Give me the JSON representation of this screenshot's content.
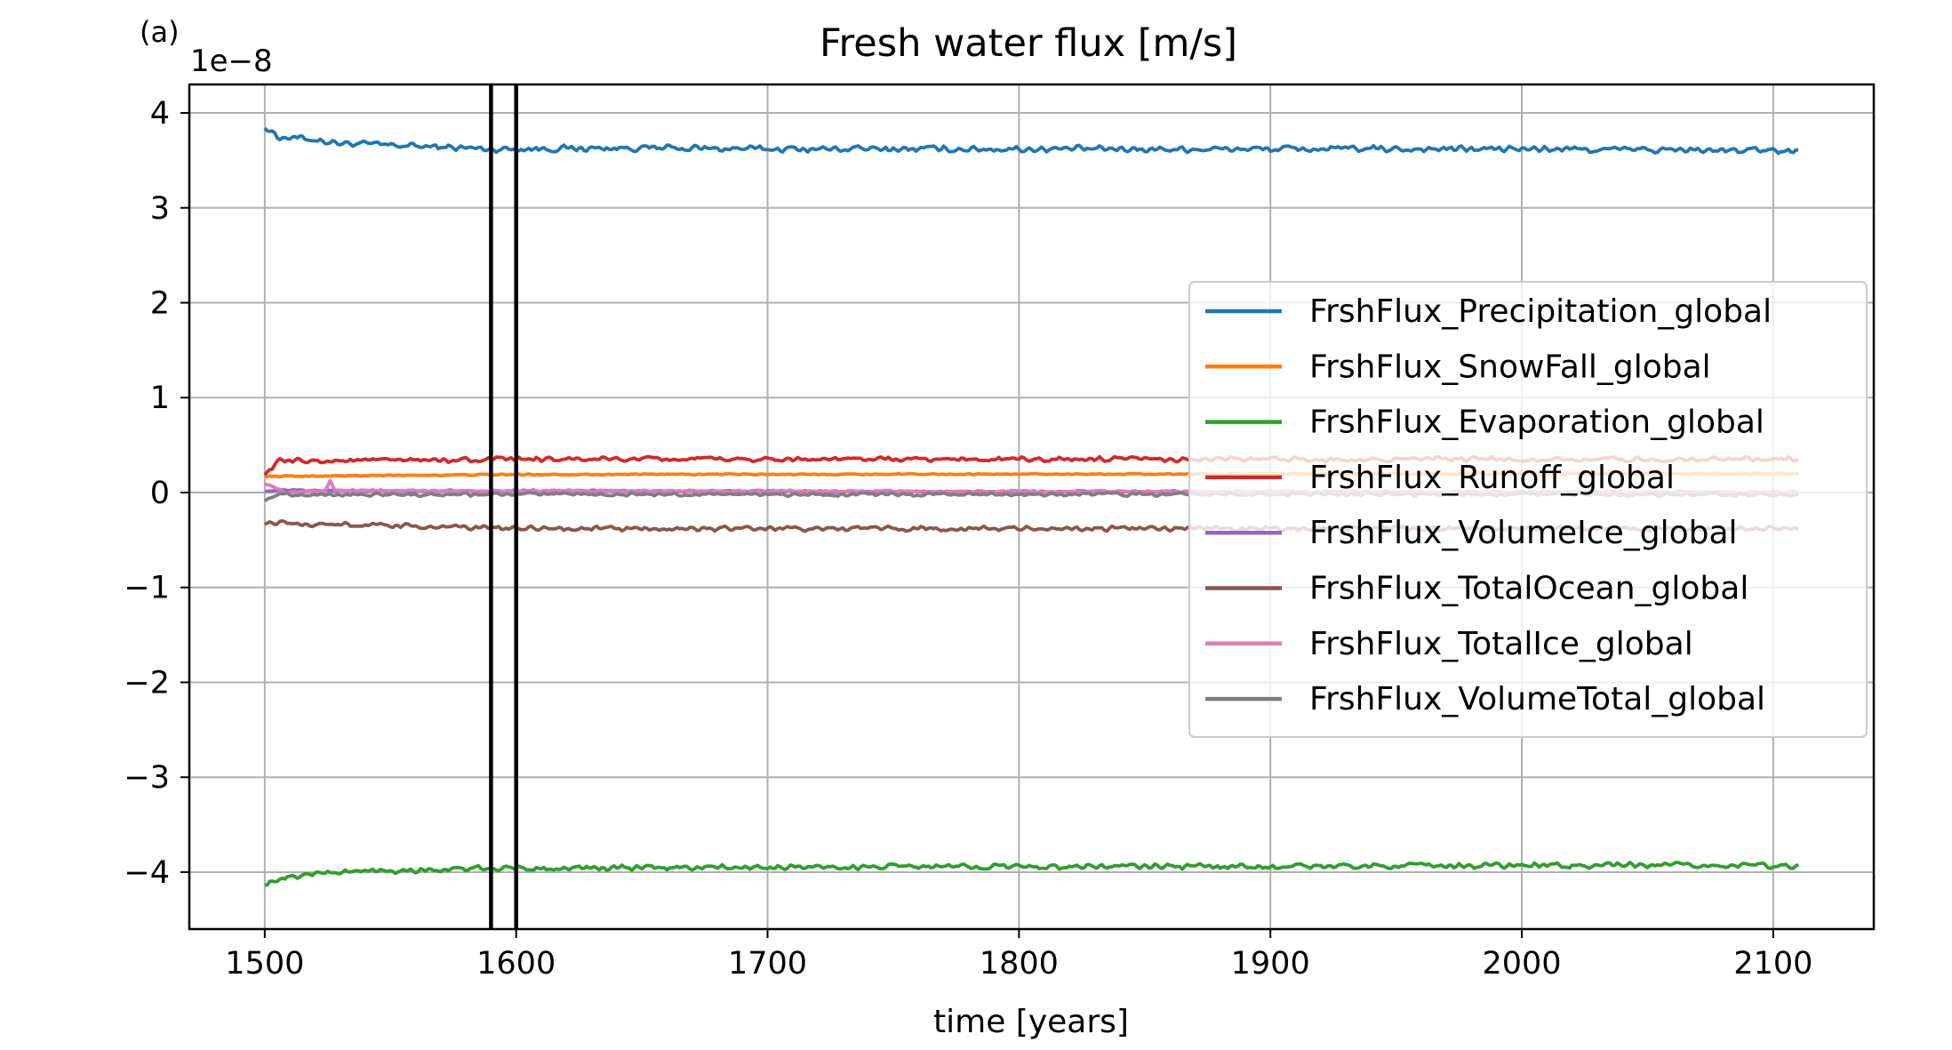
{
  "panel_label": "(a)",
  "chart_data": {
    "type": "line",
    "title": "Fresh water flux [m/s]",
    "xlabel": "time [years]",
    "ylabel": "",
    "y_offset_label": "1e−8",
    "y_scale": 1e-08,
    "xlim": [
      1470,
      2140
    ],
    "ylim": [
      -4.6,
      4.3
    ],
    "xticks": [
      1500,
      1600,
      1700,
      1800,
      1900,
      2000,
      2100
    ],
    "yticks": [
      4,
      3,
      2,
      1,
      0,
      -1,
      -2,
      -3,
      -4
    ],
    "ytick_labels": [
      "4",
      "3",
      "2",
      "1",
      "0",
      "−1",
      "−2",
      "−3",
      "−4"
    ],
    "grid": true,
    "legend_position": "center-right",
    "vertical_lines": [
      1590,
      1600
    ],
    "x_range": [
      1500,
      2110
    ],
    "series": [
      {
        "name": "FrshFlux_Precipitation_global",
        "color": "#1f77b4",
        "points": [
          [
            1500,
            3.86
          ],
          [
            1505,
            3.75
          ],
          [
            1510,
            3.74
          ],
          [
            1520,
            3.72
          ],
          [
            1530,
            3.68
          ],
          [
            1550,
            3.66
          ],
          [
            1570,
            3.64
          ],
          [
            1590,
            3.62
          ],
          [
            1650,
            3.63
          ],
          [
            1700,
            3.62
          ],
          [
            1800,
            3.62
          ],
          [
            1900,
            3.62
          ],
          [
            2000,
            3.62
          ],
          [
            2110,
            3.6
          ]
        ],
        "noise": 0.04
      },
      {
        "name": "FrshFlux_SnowFall_global",
        "color": "#ff7f0e",
        "points": [
          [
            1500,
            0.17
          ],
          [
            1600,
            0.19
          ],
          [
            2110,
            0.2
          ]
        ],
        "noise": 0.008
      },
      {
        "name": "FrshFlux_Evaporation_global",
        "color": "#2ca02c",
        "points": [
          [
            1500,
            -4.12
          ],
          [
            1505,
            -4.08
          ],
          [
            1520,
            -4.01
          ],
          [
            1550,
            -3.98
          ],
          [
            1600,
            -3.96
          ],
          [
            1700,
            -3.95
          ],
          [
            1800,
            -3.94
          ],
          [
            1900,
            -3.94
          ],
          [
            2000,
            -3.93
          ],
          [
            2110,
            -3.93
          ]
        ],
        "noise": 0.035
      },
      {
        "name": "FrshFlux_Runoff_global",
        "color": "#d62728",
        "points": [
          [
            1500,
            0.2
          ],
          [
            1506,
            0.33
          ],
          [
            1600,
            0.35
          ],
          [
            2110,
            0.35
          ]
        ],
        "noise": 0.03
      },
      {
        "name": "FrshFlux_VolumeIce_global",
        "color": "#9467bd",
        "points": [
          [
            1500,
            0.02
          ],
          [
            2110,
            0.0
          ]
        ],
        "noise": 0.012
      },
      {
        "name": "FrshFlux_TotalOcean_global",
        "color": "#8c564b",
        "points": [
          [
            1500,
            -0.32
          ],
          [
            1600,
            -0.38
          ],
          [
            2110,
            -0.38
          ]
        ],
        "noise": 0.03
      },
      {
        "name": "FrshFlux_TotalIce_global",
        "color": "#e377c2",
        "points": [
          [
            1500,
            0.1
          ],
          [
            1508,
            0.0
          ],
          [
            1524,
            0.02
          ],
          [
            1526,
            0.13
          ],
          [
            1528,
            0.02
          ],
          [
            2110,
            0.0
          ]
        ],
        "noise": 0.012
      },
      {
        "name": "FrshFlux_VolumeTotal_global",
        "color": "#7f7f7f",
        "points": [
          [
            1500,
            -0.08
          ],
          [
            1505,
            -0.02
          ],
          [
            2110,
            -0.02
          ]
        ],
        "noise": 0.022
      }
    ]
  }
}
